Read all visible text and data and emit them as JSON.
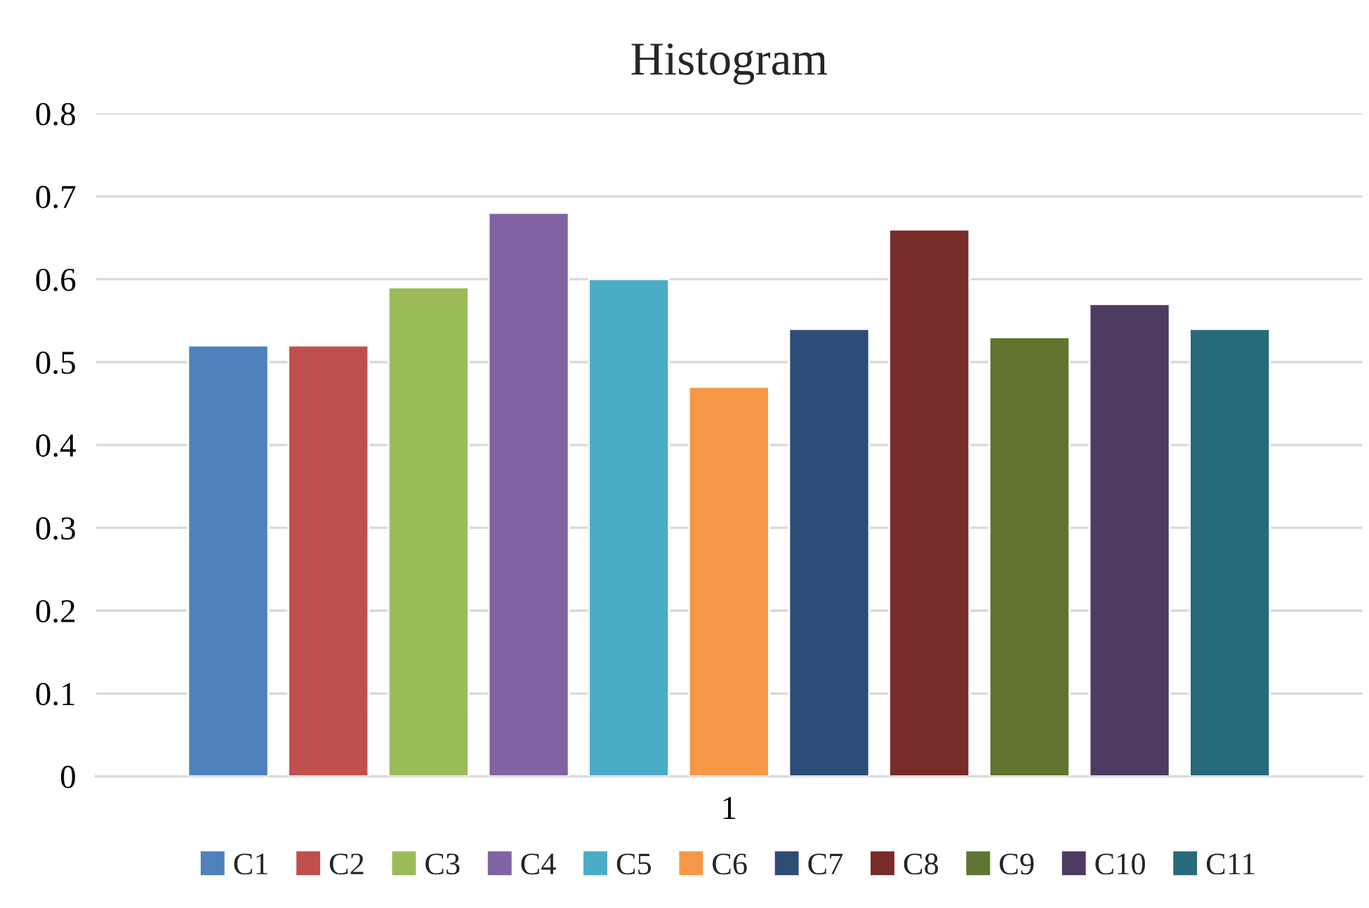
{
  "chart_data": {
    "type": "bar",
    "title": "Histogram",
    "categories": [
      "1"
    ],
    "series": [
      {
        "name": "C1",
        "color": "#4f81bd",
        "values": [
          0.52
        ]
      },
      {
        "name": "C2",
        "color": "#c0504d",
        "values": [
          0.52
        ]
      },
      {
        "name": "C3",
        "color": "#9bbb59",
        "values": [
          0.59
        ]
      },
      {
        "name": "C4",
        "color": "#8064a2",
        "values": [
          0.68
        ]
      },
      {
        "name": "C5",
        "color": "#4bacc6",
        "values": [
          0.6
        ]
      },
      {
        "name": "C6",
        "color": "#f79646",
        "values": [
          0.47
        ]
      },
      {
        "name": "C7",
        "color": "#2c4d75",
        "values": [
          0.54
        ]
      },
      {
        "name": "C8",
        "color": "#772c2a",
        "values": [
          0.66
        ]
      },
      {
        "name": "C9",
        "color": "#5f7530",
        "values": [
          0.53
        ]
      },
      {
        "name": "C10",
        "color": "#4d3b62",
        "values": [
          0.57
        ]
      },
      {
        "name": "C11",
        "color": "#276a7c",
        "values": [
          0.54
        ]
      }
    ],
    "ylim": [
      0,
      0.8
    ],
    "yticks": [
      0,
      0.1,
      0.2,
      0.3,
      0.4,
      0.5,
      0.6,
      0.7,
      0.8
    ],
    "grid": "y",
    "legend": "bottom"
  }
}
